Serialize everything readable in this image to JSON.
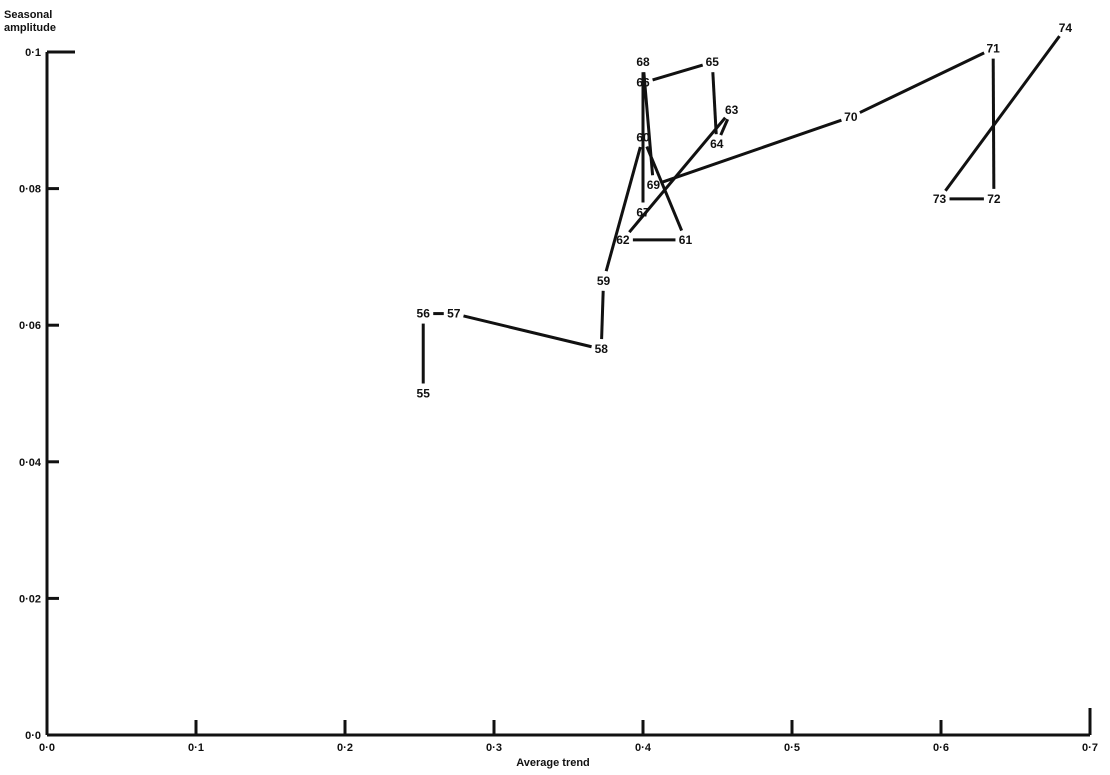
{
  "chart_data": {
    "type": "line",
    "title": "",
    "xlabel": "Average trend",
    "ylabel": "Seasonal amplitude",
    "xlim": [
      0.0,
      0.7
    ],
    "ylim": [
      0.0,
      0.1
    ],
    "x_ticks": [
      0.0,
      0.1,
      0.2,
      0.3,
      0.4,
      0.5,
      0.6,
      0.7
    ],
    "x_tick_labels": [
      "0·0",
      "0·1",
      "0·2",
      "0·3",
      "0·4",
      "0·5",
      "0·6",
      "0·7"
    ],
    "y_ticks": [
      0.0,
      0.02,
      0.04,
      0.06,
      0.08,
      0.1
    ],
    "y_tick_labels": [
      "0·0",
      "0·02",
      "0·04",
      "0·06",
      "0·08",
      "0·1"
    ],
    "grid": false,
    "legend": "none",
    "line_color": "#111111",
    "points": [
      {
        "label": "55",
        "x": 0.2525,
        "y": 0.05
      },
      {
        "label": "56",
        "x": 0.2525,
        "y": 0.0617
      },
      {
        "label": "57",
        "x": 0.273,
        "y": 0.0617
      },
      {
        "label": "58",
        "x": 0.372,
        "y": 0.0565
      },
      {
        "label": "59",
        "x": 0.3735,
        "y": 0.0665
      },
      {
        "label": "60",
        "x": 0.4,
        "y": 0.0875
      },
      {
        "label": "61",
        "x": 0.4285,
        "y": 0.0725
      },
      {
        "label": "62",
        "x": 0.3865,
        "y": 0.0725
      },
      {
        "label": "63",
        "x": 0.4595,
        "y": 0.0915
      },
      {
        "label": "64",
        "x": 0.4495,
        "y": 0.0865
      },
      {
        "label": "65",
        "x": 0.4465,
        "y": 0.0985
      },
      {
        "label": "66",
        "x": 0.4,
        "y": 0.0955
      },
      {
        "label": "67",
        "x": 0.4,
        "y": 0.0765
      },
      {
        "label": "68",
        "x": 0.4,
        "y": 0.0985
      },
      {
        "label": "69",
        "x": 0.407,
        "y": 0.0805
      },
      {
        "label": "70",
        "x": 0.5395,
        "y": 0.0905
      },
      {
        "label": "71",
        "x": 0.635,
        "y": 0.1005
      },
      {
        "label": "72",
        "x": 0.6355,
        "y": 0.0785
      },
      {
        "label": "73",
        "x": 0.599,
        "y": 0.0785
      },
      {
        "label": "74",
        "x": 0.6835,
        "y": 0.1035
      }
    ]
  }
}
